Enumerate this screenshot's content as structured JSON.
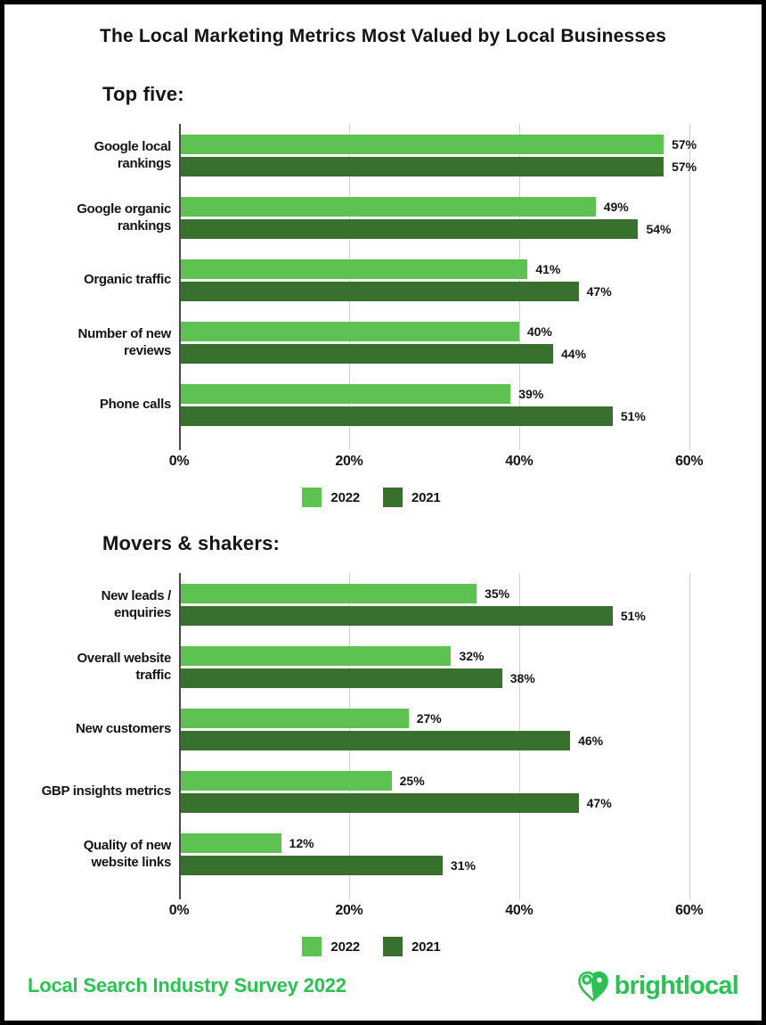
{
  "page": {
    "title": "The Local Marketing Metrics Most Valued by Local Businesses"
  },
  "colors": {
    "bar_2022": "#5DC252",
    "bar_2021": "#38702D",
    "brand_green": "#2BC153",
    "gridline": "#CFCFCF",
    "axis": "#4A4A4A",
    "text": "#141414",
    "background": "#FFFFFF",
    "border": "#000000"
  },
  "legend": {
    "items": [
      {
        "label": "2022",
        "color": "#5DC252"
      },
      {
        "label": "2021",
        "color": "#38702D"
      }
    ],
    "position": "bottom-center"
  },
  "chart_data": [
    {
      "type": "bar",
      "orientation": "horizontal",
      "title": "Top five:",
      "categories": [
        "Google local\nrankings",
        "Google organic\nrankings",
        "Organic traffic",
        "Number of new\nreviews",
        "Phone calls"
      ],
      "series": [
        {
          "name": "2022",
          "values": [
            57,
            49,
            41,
            40,
            39
          ]
        },
        {
          "name": "2021",
          "values": [
            57,
            54,
            47,
            44,
            51
          ]
        }
      ],
      "value_suffix": "%",
      "xlim": [
        0,
        66
      ],
      "xticks": [
        {
          "value": 0,
          "label": "0%"
        },
        {
          "value": 20,
          "label": "20%"
        },
        {
          "value": 40,
          "label": "40%"
        },
        {
          "value": 60,
          "label": "60%"
        }
      ],
      "grid": true,
      "legend_position": "bottom"
    },
    {
      "type": "bar",
      "orientation": "horizontal",
      "title": "Movers & shakers:",
      "categories": [
        "New leads /\nenquiries",
        "Overall website\ntraffic",
        "New customers",
        "GBP insights metrics",
        "Quality of new\nwebsite links"
      ],
      "series": [
        {
          "name": "2022",
          "values": [
            35,
            32,
            27,
            25,
            12
          ]
        },
        {
          "name": "2021",
          "values": [
            51,
            38,
            46,
            47,
            31
          ]
        }
      ],
      "value_suffix": "%",
      "xlim": [
        0,
        66
      ],
      "xticks": [
        {
          "value": 0,
          "label": "0%"
        },
        {
          "value": 20,
          "label": "20%"
        },
        {
          "value": 40,
          "label": "40%"
        },
        {
          "value": 60,
          "label": "60%"
        }
      ],
      "grid": true,
      "legend_position": "bottom"
    }
  ],
  "footer": {
    "source_text": "Local Search Industry Survey 2022",
    "logo_text": "brightlocal",
    "logo_icon": "heart-map-pin"
  }
}
